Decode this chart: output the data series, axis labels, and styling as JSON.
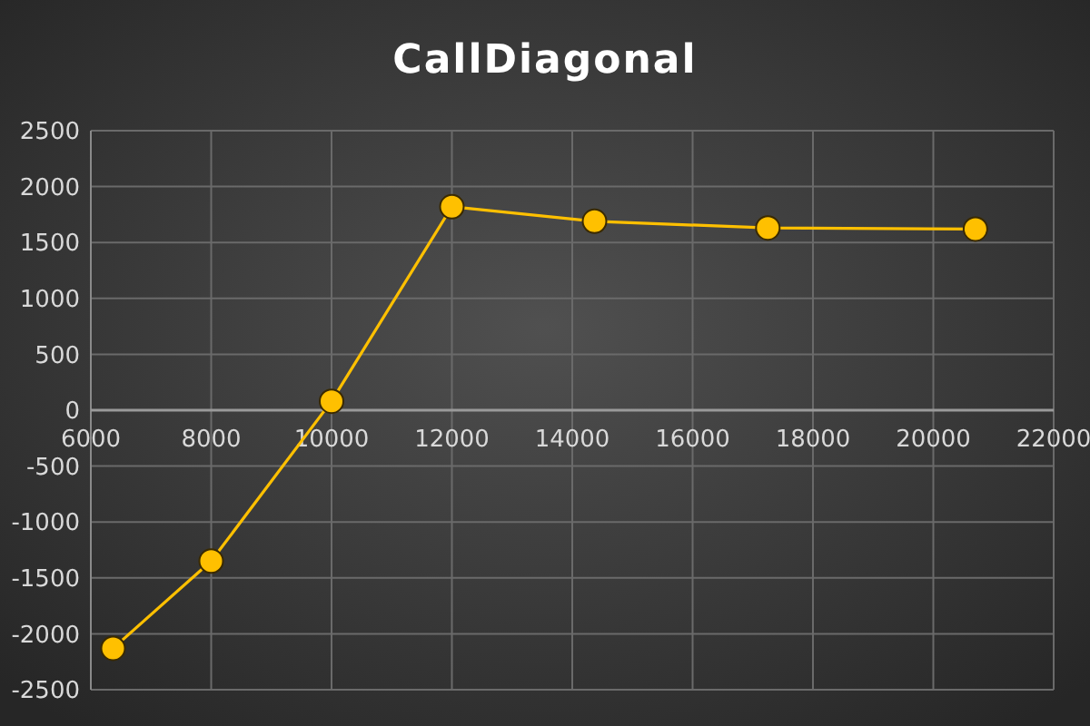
{
  "chart_data": {
    "type": "line",
    "title": "CallDiagonal",
    "x": [
      6370,
      8000,
      10000,
      12000,
      14370,
      17250,
      20700
    ],
    "values": [
      -2130,
      -1350,
      80,
      1820,
      1690,
      1630,
      1620
    ],
    "color": "#ffc000",
    "xlim": [
      6000,
      22000
    ],
    "xticks": [
      6000,
      8000,
      10000,
      12000,
      14000,
      16000,
      18000,
      20000,
      22000
    ],
    "ylim": [
      -2500,
      2500
    ],
    "yticks": [
      -2500,
      -2000,
      -1500,
      -1000,
      -500,
      0,
      500,
      1000,
      1500,
      2000,
      2500
    ],
    "grid": true,
    "legend": false,
    "marker": "circle",
    "line_style": "solid"
  }
}
